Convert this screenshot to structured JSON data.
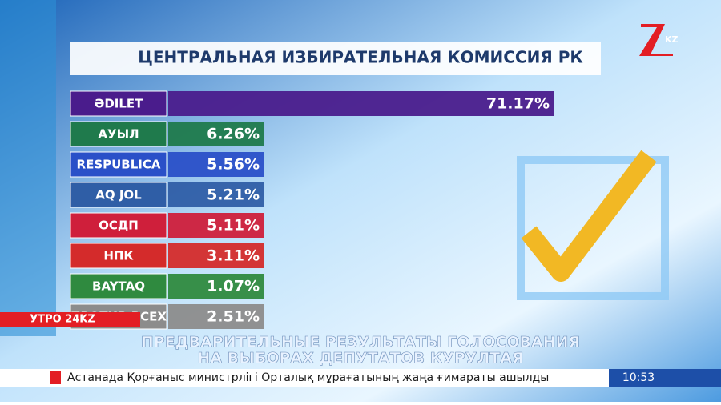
{
  "logo": "KZ",
  "chart_data": {
    "type": "bar",
    "title": "ЦЕНТРАЛЬНАЯ ИЗБИРАТЕЛЬНАЯ КОМИССИЯ РК",
    "categories": [
      "ӘDILET",
      "АУЫЛ",
      "RESPUBLICA",
      "AQ JOL",
      "ОСДП",
      "НПК",
      "BAYTAQ",
      "ПРОТИВ ВСЕХ"
    ],
    "values": [
      71.17,
      6.26,
      5.56,
      5.21,
      5.11,
      3.11,
      1.07,
      2.51
    ],
    "value_labels": [
      "71.17%",
      "6.26%",
      "5.56%",
      "5.21%",
      "5.11%",
      "3.11%",
      "1.07%",
      "2.51%"
    ],
    "colors": [
      "#4a1c8c",
      "#1f7a4c",
      "#2a50c8",
      "#2f5ea6",
      "#cf1f3b",
      "#d42b2b",
      "#2f8a3f",
      "#8c8c8c"
    ],
    "xlim": [
      0,
      72
    ]
  },
  "show_label": "УТРО 24KZ",
  "caption": [
    "ПРЕДВАРИТЕЛЬНЫЕ РЕЗУЛЬТАТЫ ГОЛОСОВАНИЯ",
    "НА ВЫБОРАХ ДЕПУТАТОВ КУРУЛТАЯ"
  ],
  "ticker": {
    "text": "Астанада Қорғаныс министрлігі Орталық мұрағатының жаңа ғимараты ашылды",
    "time": "10:53"
  }
}
